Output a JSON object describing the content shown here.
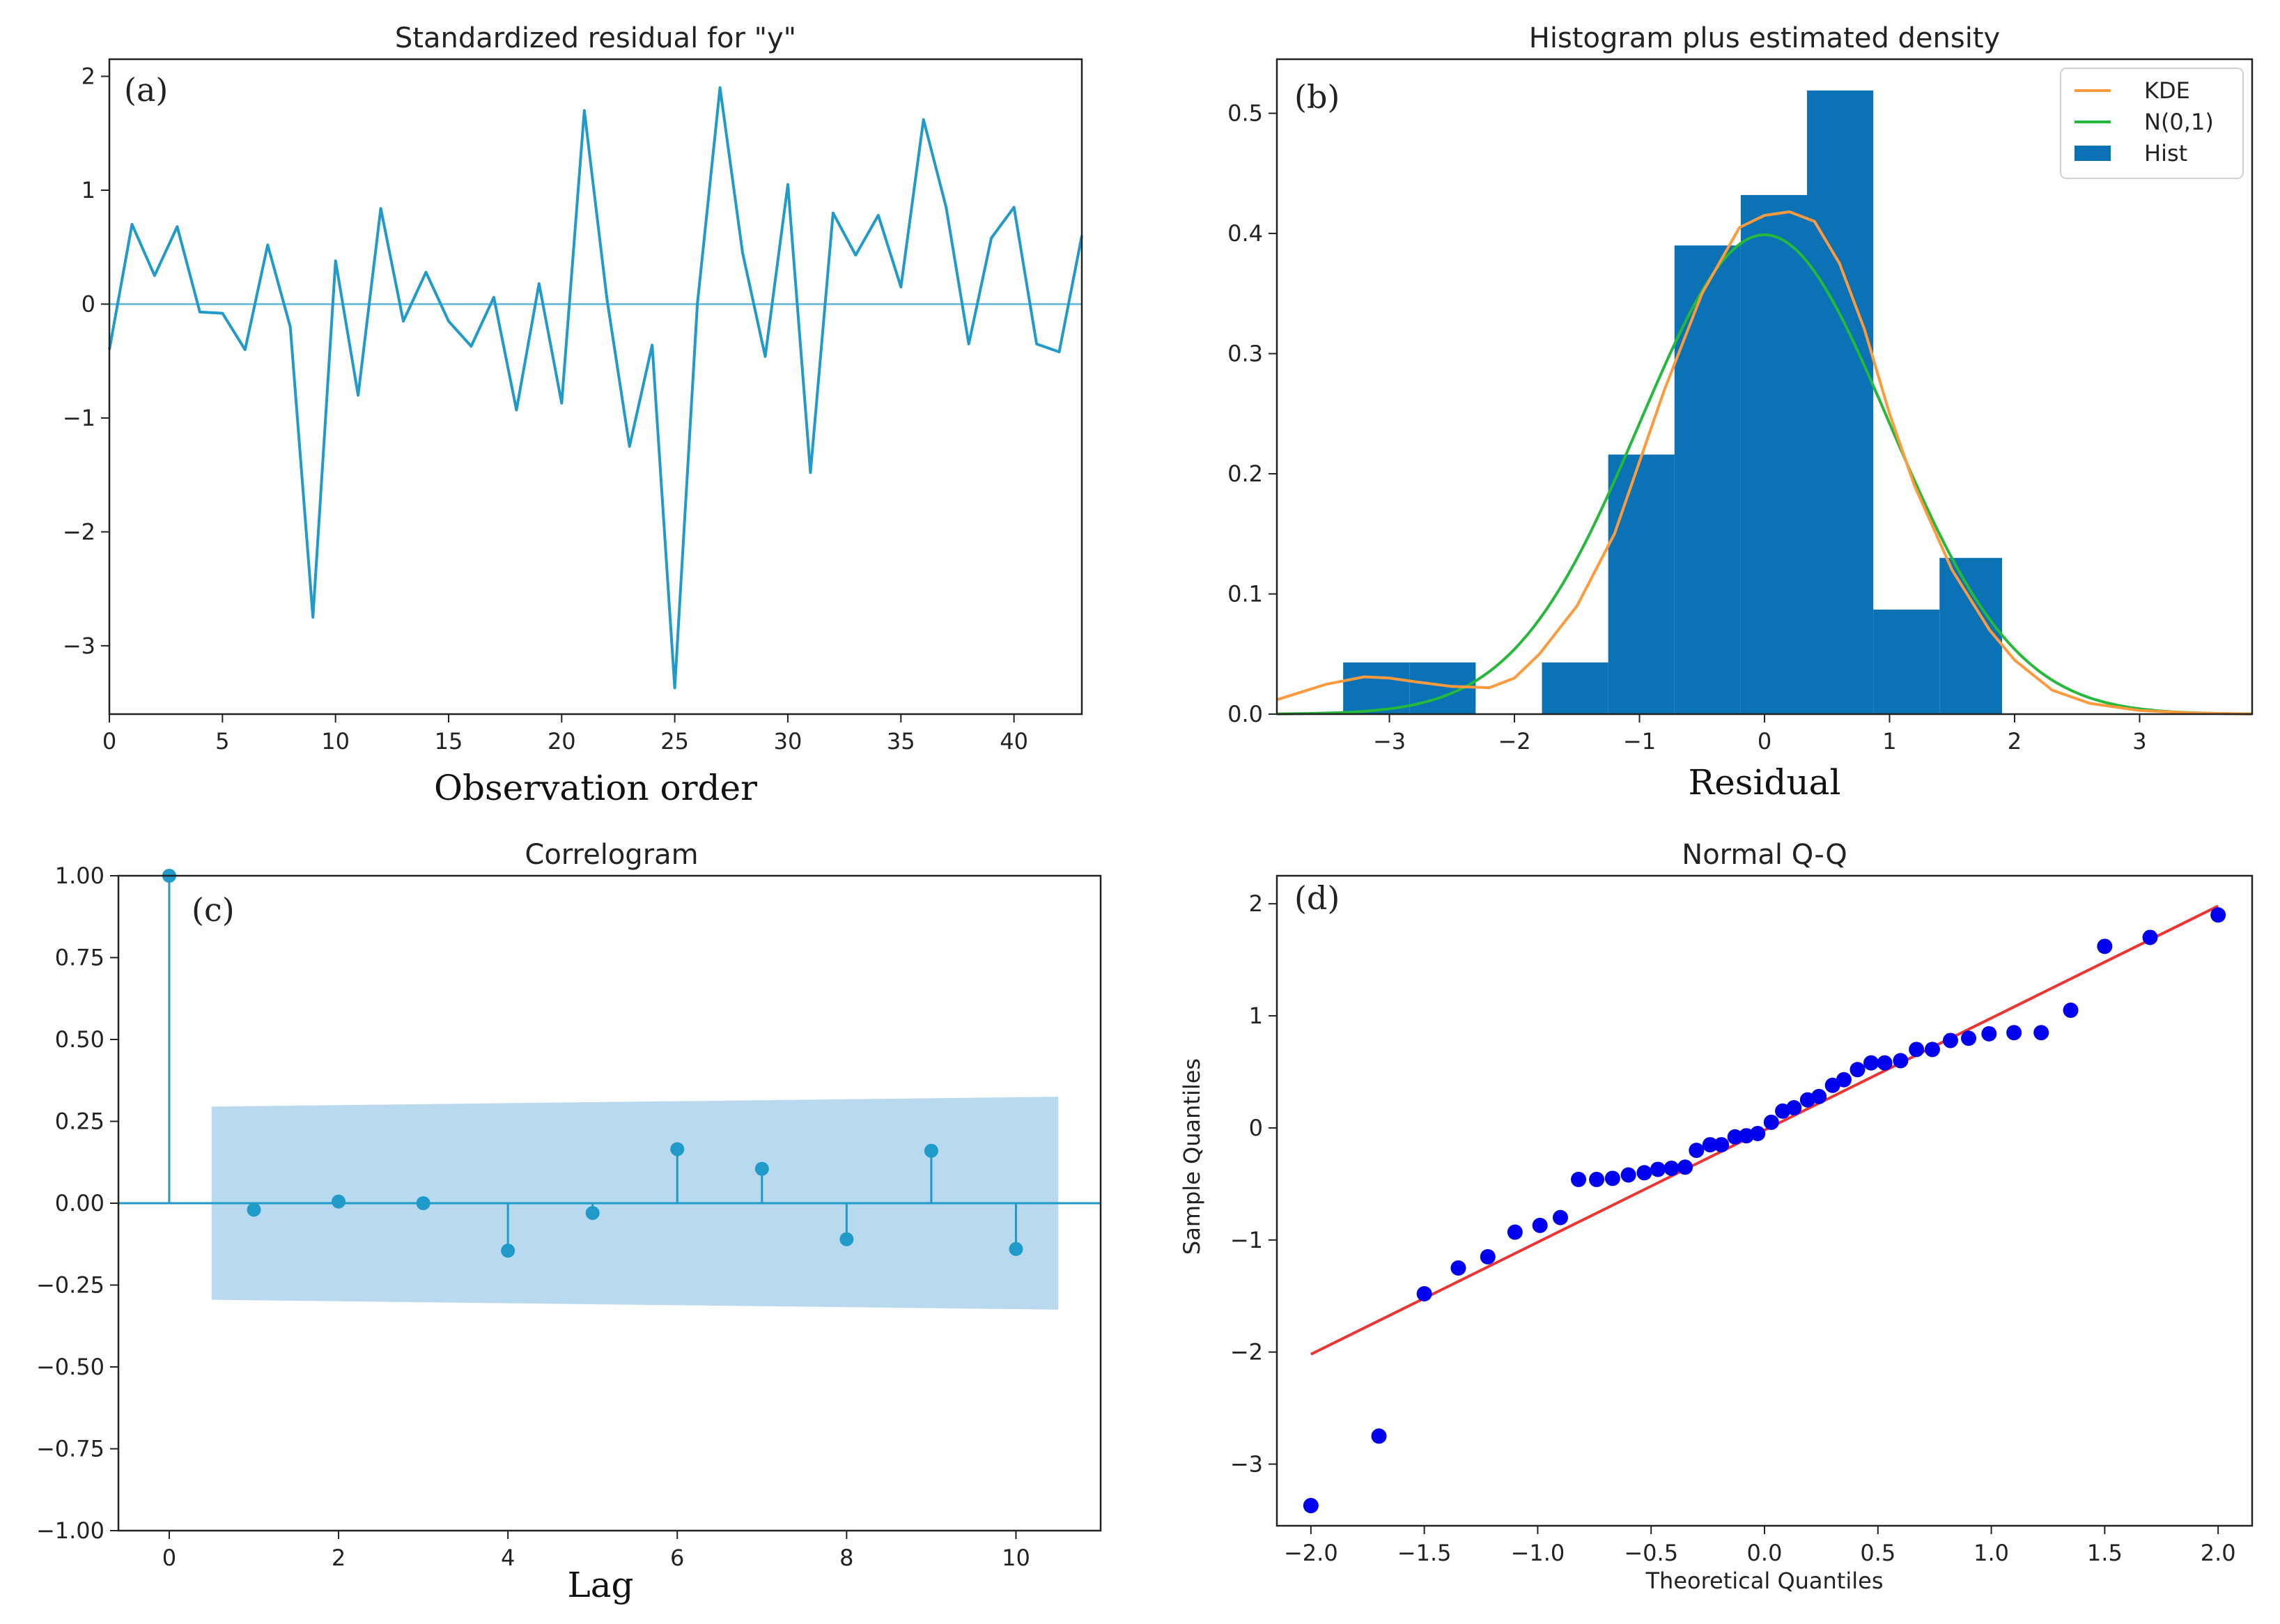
{
  "colors": {
    "series": "#1f9ac9",
    "hist": "#0a72b5",
    "kde": "#ff9a3c",
    "normal": "#26b83a",
    "band": "#b9d9ee",
    "qq_points": "#0000ee",
    "qq_line": "#ee3333",
    "axis": "#222222"
  },
  "chart_data": [
    {
      "id": "a",
      "type": "line",
      "panel_label": "(a)",
      "title": "Standardized residual for \"y\"",
      "xlabel": "Observation order",
      "ylabel": "",
      "xlim": [
        0,
        43
      ],
      "ylim": [
        -3.6,
        2.15
      ],
      "xticks": [
        0,
        5,
        10,
        15,
        20,
        25,
        30,
        35,
        40
      ],
      "yticks": [
        -3,
        -2,
        -1,
        0,
        1,
        2
      ],
      "hline": 0,
      "x": [
        0,
        1,
        2,
        3,
        4,
        5,
        6,
        7,
        8,
        9,
        10,
        11,
        12,
        13,
        14,
        15,
        16,
        17,
        18,
        19,
        20,
        21,
        22,
        23,
        24,
        25,
        26,
        27,
        28,
        29,
        30,
        31,
        32,
        33,
        34,
        35,
        36,
        37,
        38,
        39,
        40,
        41,
        42,
        43
      ],
      "values": [
        -0.4,
        0.7,
        0.25,
        0.68,
        -0.07,
        -0.08,
        -0.4,
        0.52,
        -0.2,
        -2.75,
        0.38,
        -0.8,
        0.84,
        -0.15,
        0.28,
        -0.15,
        -0.37,
        0.06,
        -0.93,
        0.18,
        -0.87,
        1.7,
        0.05,
        -1.25,
        -0.36,
        -3.37,
        0.0,
        1.9,
        0.45,
        -0.46,
        1.05,
        -1.48,
        0.8,
        0.43,
        0.78,
        0.15,
        1.62,
        0.85,
        -0.35,
        0.58,
        0.85,
        -0.35,
        -0.42,
        0.6
      ]
    },
    {
      "id": "b",
      "type": "bar",
      "panel_label": "(b)",
      "title": "Histogram plus estimated density",
      "xlabel": "Residual",
      "ylabel": "",
      "xlim": [
        -3.9,
        3.9
      ],
      "ylim": [
        0,
        0.545
      ],
      "xticks": [
        -3,
        -2,
        -1,
        0,
        1,
        2,
        3
      ],
      "yticks": [
        0.0,
        0.1,
        0.2,
        0.3,
        0.4,
        0.5
      ],
      "ytick_labels": [
        "0.0",
        "0.1",
        "0.2",
        "0.3",
        "0.4",
        "0.5"
      ],
      "legend": [
        "KDE",
        "N(0,1)",
        "Hist"
      ],
      "legend_position": "top-right",
      "hist_edges": [
        -3.37,
        -2.84,
        -2.31,
        -1.78,
        -1.25,
        -0.72,
        -0.19,
        0.34,
        0.87,
        1.4,
        1.9
      ],
      "hist_values": [
        0.043,
        0.043,
        0.0,
        0.043,
        0.216,
        0.39,
        0.432,
        0.519,
        0.087,
        0.13
      ],
      "kde": {
        "x": [
          -3.9,
          -3.5,
          -3.2,
          -3.0,
          -2.8,
          -2.5,
          -2.2,
          -2.0,
          -1.8,
          -1.5,
          -1.2,
          -1.0,
          -0.8,
          -0.5,
          -0.2,
          0.0,
          0.2,
          0.4,
          0.6,
          0.8,
          1.0,
          1.2,
          1.5,
          1.8,
          2.0,
          2.3,
          2.6,
          3.0,
          3.4,
          3.9
        ],
        "y": [
          0.012,
          0.025,
          0.031,
          0.03,
          0.027,
          0.023,
          0.022,
          0.03,
          0.05,
          0.09,
          0.15,
          0.21,
          0.27,
          0.35,
          0.405,
          0.415,
          0.418,
          0.41,
          0.375,
          0.32,
          0.25,
          0.19,
          0.12,
          0.07,
          0.045,
          0.02,
          0.009,
          0.003,
          0.001,
          0.0
        ]
      },
      "normal": {
        "mean": 0,
        "sd": 1
      }
    },
    {
      "id": "c",
      "type": "stem",
      "panel_label": "(c)",
      "title": "Correlogram",
      "xlabel": "Lag",
      "ylabel": "",
      "xlim": [
        -0.6,
        11.0
      ],
      "ylim": [
        -1.0,
        1.0
      ],
      "xticks": [
        0,
        2,
        4,
        6,
        8,
        10
      ],
      "yticks": [
        -1.0,
        -0.75,
        -0.5,
        -0.25,
        0.0,
        0.25,
        0.5,
        0.75,
        1.0
      ],
      "ytick_labels": [
        "−1.00",
        "−0.75",
        "−0.50",
        "−0.25",
        "0.00",
        "0.25",
        "0.50",
        "0.75",
        "1.00"
      ],
      "lags": [
        0,
        1,
        2,
        3,
        4,
        5,
        6,
        7,
        8,
        9,
        10
      ],
      "values": [
        1.0,
        -0.02,
        0.005,
        0.0,
        -0.145,
        -0.03,
        0.165,
        0.105,
        -0.11,
        0.16,
        -0.14
      ],
      "confidence_band": {
        "x": [
          0.5,
          10.5
        ],
        "upper": [
          0.295,
          0.325
        ],
        "lower": [
          -0.295,
          -0.325
        ]
      }
    },
    {
      "id": "d",
      "type": "scatter",
      "panel_label": "(d)",
      "title": "Normal Q-Q",
      "xlabel": "Theoretical Quantiles",
      "ylabel": "Sample Quantiles",
      "xlim": [
        -2.15,
        2.15
      ],
      "ylim": [
        -3.55,
        2.25
      ],
      "xticks": [
        -2.0,
        -1.5,
        -1.0,
        -0.5,
        0.0,
        0.5,
        1.0,
        1.5,
        2.0
      ],
      "xtick_labels": [
        "−2.0",
        "−1.5",
        "−1.0",
        "−0.5",
        "0.0",
        "0.5",
        "1.0",
        "1.5",
        "2.0"
      ],
      "yticks": [
        -3,
        -2,
        -1,
        0,
        1,
        2
      ],
      "reference_line": {
        "x": [
          -2.0,
          2.0
        ],
        "y": [
          -2.02,
          1.98
        ]
      },
      "x": [
        -2.0,
        -1.7,
        -1.5,
        -1.35,
        -1.22,
        -1.1,
        -0.99,
        -0.9,
        -0.82,
        -0.74,
        -0.67,
        -0.6,
        -0.53,
        -0.47,
        -0.41,
        -0.35,
        -0.3,
        -0.24,
        -0.19,
        -0.13,
        -0.08,
        -0.03,
        0.03,
        0.08,
        0.13,
        0.19,
        0.24,
        0.3,
        0.35,
        0.41,
        0.47,
        0.53,
        0.6,
        0.67,
        0.74,
        0.82,
        0.9,
        0.99,
        1.1,
        1.22,
        1.35,
        1.5,
        1.7,
        2.0
      ],
      "values": [
        -3.37,
        -2.75,
        -1.48,
        -1.25,
        -1.15,
        -0.93,
        -0.87,
        -0.8,
        -0.46,
        -0.46,
        -0.45,
        -0.42,
        -0.4,
        -0.37,
        -0.36,
        -0.35,
        -0.2,
        -0.15,
        -0.15,
        -0.08,
        -0.07,
        -0.05,
        0.05,
        0.15,
        0.18,
        0.25,
        0.28,
        0.38,
        0.43,
        0.52,
        0.58,
        0.58,
        0.6,
        0.7,
        0.7,
        0.78,
        0.8,
        0.84,
        0.85,
        0.85,
        1.05,
        1.62,
        1.7,
        1.9
      ]
    }
  ]
}
